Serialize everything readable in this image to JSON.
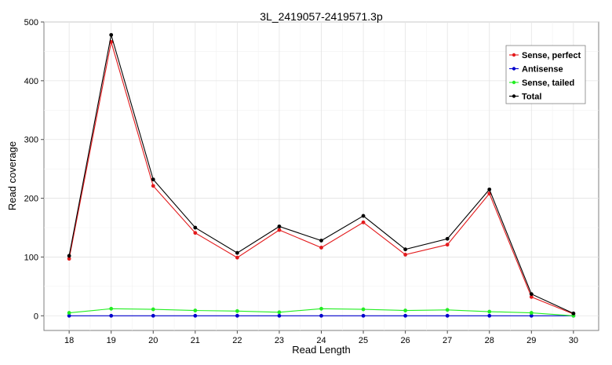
{
  "chart_data": {
    "type": "line",
    "title": "3L_2419057-2419571.3p",
    "xlabel": "Read Length",
    "ylabel": "Read coverage",
    "x": [
      18,
      19,
      20,
      21,
      22,
      23,
      24,
      25,
      26,
      27,
      28,
      29,
      30
    ],
    "xlim": [
      17.4,
      30.6
    ],
    "ylim": [
      -25,
      500
    ],
    "yticks": [
      0,
      100,
      200,
      300,
      400,
      500
    ],
    "grid": true,
    "legend_position": "top-right",
    "series": [
      {
        "name": "Sense, perfect",
        "color": "#e31a1c",
        "values": [
          97,
          466,
          221,
          141,
          99,
          146,
          116,
          159,
          104,
          121,
          208,
          32,
          3
        ]
      },
      {
        "name": "Antisense",
        "color": "#0000cc",
        "values": [
          0,
          0,
          0,
          0,
          0,
          0,
          0,
          0,
          0,
          0,
          0,
          0,
          0
        ]
      },
      {
        "name": "Sense, tailed",
        "color": "#22ee22",
        "values": [
          5,
          12,
          11,
          9,
          8,
          6,
          12,
          11,
          9,
          10,
          7,
          5,
          0
        ]
      },
      {
        "name": "Total",
        "color": "#000000",
        "values": [
          102,
          478,
          232,
          150,
          107,
          152,
          128,
          170,
          113,
          131,
          215,
          37,
          4
        ]
      }
    ]
  }
}
